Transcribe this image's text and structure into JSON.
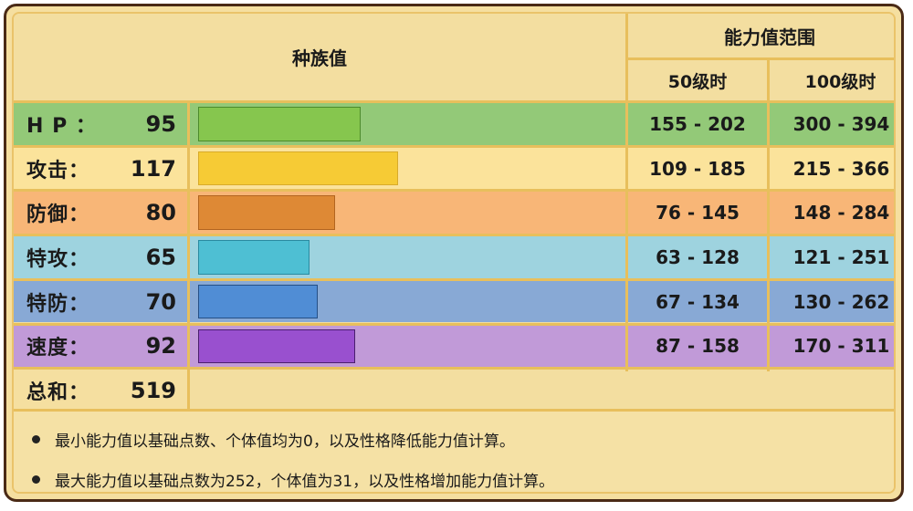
{
  "header": {
    "base_stats": "种族值",
    "stat_range": "能力值范围",
    "level50": "50级时",
    "level100": "100级时"
  },
  "rows": [
    {
      "label": "H P ：",
      "value": "95",
      "lv50": "155 - 202",
      "lv100": "300 - 394",
      "row_color": "#93c978",
      "bar_color": "#86c64e",
      "bar_border": "#4c8a2c"
    },
    {
      "label": "攻击：",
      "value": "117",
      "lv50": "109 - 185",
      "lv100": "215 - 366",
      "row_color": "#fbe39b",
      "bar_color": "#f6cb35",
      "bar_border": "#d8ab2a"
    },
    {
      "label": "防御：",
      "value": "80",
      "lv50": "76 - 145",
      "lv100": "148 - 284",
      "row_color": "#f8b677",
      "bar_color": "#de8935",
      "bar_border": "#b2641f"
    },
    {
      "label": "特攻：",
      "value": "65",
      "lv50": "63 - 128",
      "lv100": "121 - 251",
      "row_color": "#9ed3df",
      "bar_color": "#4ebfd3",
      "bar_border": "#2a8aa0"
    },
    {
      "label": "特防：",
      "value": "70",
      "lv50": "67 - 134",
      "lv100": "130 - 262",
      "row_color": "#88a9d5",
      "bar_color": "#508dd5",
      "bar_border": "#254f86"
    },
    {
      "label": "速度：",
      "value": "92",
      "lv50": "87 - 158",
      "lv100": "170 - 311",
      "row_color": "#c19ad8",
      "bar_color": "#9950cf",
      "bar_border": "#4a1f6e"
    }
  ],
  "total": {
    "label": "总和：",
    "value": "519"
  },
  "notes": [
    "最小能力值以基础点数、个体值均为0，以及性格降低能力值计算。",
    "最大能力值以基础点数为252，个体值为31，以及性格增加能力值计算。"
  ],
  "chart_data": {
    "type": "bar",
    "title": "种族值",
    "orientation": "horizontal",
    "categories": [
      "HP",
      "攻击",
      "防御",
      "特攻",
      "特防",
      "速度"
    ],
    "values": [
      95,
      117,
      80,
      65,
      70,
      92
    ],
    "total": 519,
    "colors": [
      "#86c64e",
      "#f6cb35",
      "#de8935",
      "#4ebfd3",
      "#508dd5",
      "#9950cf"
    ],
    "xlim": [
      0,
      255
    ],
    "range_table": {
      "columns": [
        "50级时",
        "100级时"
      ],
      "lv50": [
        [
          155,
          202
        ],
        [
          109,
          185
        ],
        [
          76,
          145
        ],
        [
          63,
          128
        ],
        [
          67,
          134
        ],
        [
          87,
          158
        ]
      ],
      "lv100": [
        [
          300,
          394
        ],
        [
          215,
          366
        ],
        [
          148,
          284
        ],
        [
          121,
          251
        ],
        [
          130,
          262
        ],
        [
          170,
          311
        ]
      ]
    },
    "grid": false,
    "legend": "none"
  }
}
